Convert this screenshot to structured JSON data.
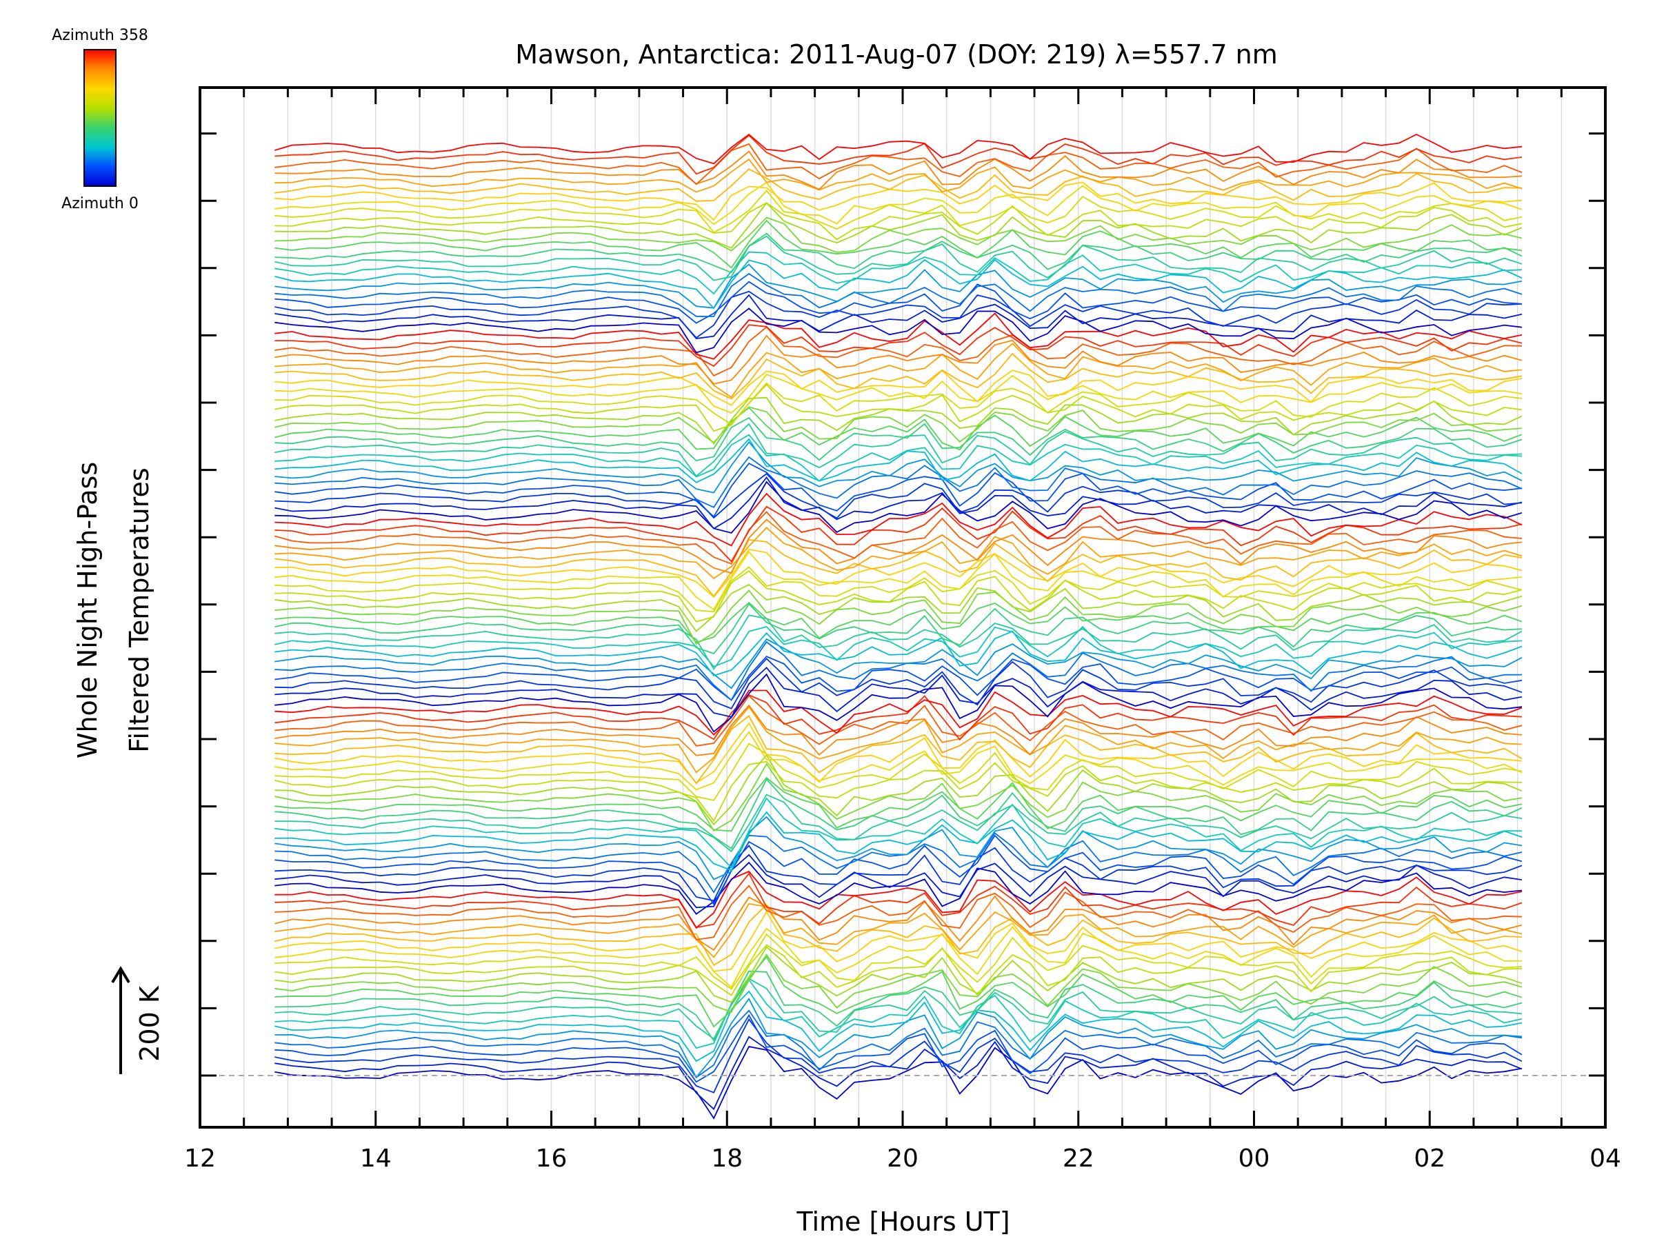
{
  "chart_data": {
    "type": "line",
    "title": "Mawson, Antarctica: 2011-Aug-07 (DOY: 219) λ=557.7 nm",
    "xlabel": "Time [Hours UT]",
    "ylabel_line1": "Whole Night High-Pass",
    "ylabel_line2": "Filtered Temperatures",
    "scale_label": "200 K",
    "colorbar": {
      "top_label": "Azimuth 358",
      "bottom_label": "Azimuth 0",
      "colors": [
        "#ff0000",
        "#ff8c00",
        "#ffd700",
        "#b4e000",
        "#3cd26e",
        "#00c8d2",
        "#0050ff",
        "#0000d2"
      ]
    },
    "x_ticks": [
      "12",
      "14",
      "16",
      "18",
      "20",
      "22",
      "00",
      "02",
      "04"
    ],
    "xlim": [
      12,
      28
    ],
    "data_time_range": [
      12.85,
      27.15
    ],
    "grid": "vertical, every 0.5 h",
    "n_traces": 115,
    "trace_colors_bottom_to_top": "azimuth color scale repeating blue → cyan → green → yellow → red, several cycles",
    "event_times": [
      17.85,
      18.35,
      19.2,
      20.35,
      20.65,
      21.1,
      21.6,
      22.0,
      23.8,
      24.5,
      26.0
    ]
  }
}
